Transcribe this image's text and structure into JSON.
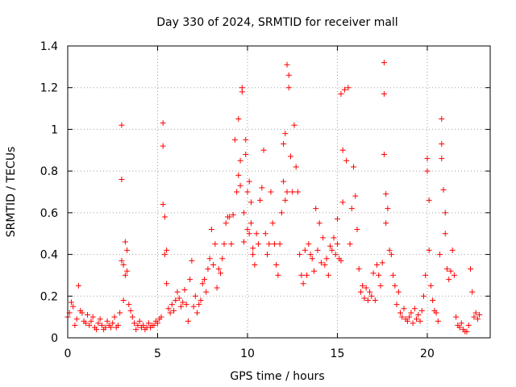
{
  "chart_data": {
    "type": "scatter",
    "title": "Day 330 of 2024, SRMTID for receiver mall",
    "xlabel": "GPS time / hours",
    "ylabel": "SRMTID / TECUs",
    "xlim": [
      0,
      23.5
    ],
    "ylim": [
      0,
      1.4
    ],
    "xticks": [
      0,
      5,
      10,
      15,
      20
    ],
    "xtick_labels": [
      "0",
      "5",
      "10",
      "15",
      "20"
    ],
    "yticks": [
      0,
      0.2,
      0.4,
      0.6,
      0.8,
      1,
      1.2,
      1.4
    ],
    "ytick_labels": [
      "0",
      "0.2",
      "0.4",
      "0.6",
      "0.8",
      "1",
      "1.2",
      "1.4"
    ],
    "grid": true,
    "marker": "plus",
    "series": [
      {
        "name": "SRMTID",
        "color": "#ff0000",
        "x": [
          0.0,
          0.1,
          0.2,
          0.3,
          0.4,
          0.5,
          0.6,
          0.7,
          0.8,
          0.9,
          1.0,
          1.1,
          1.2,
          1.3,
          1.4,
          1.5,
          1.6,
          1.7,
          1.8,
          1.9,
          2.0,
          2.1,
          2.2,
          2.3,
          2.4,
          2.5,
          2.6,
          2.7,
          2.8,
          2.9,
          3.0,
          3.0,
          3.0,
          3.1,
          3.1,
          3.2,
          3.2,
          3.3,
          3.3,
          3.4,
          3.5,
          3.6,
          3.7,
          3.8,
          3.9,
          4.0,
          4.1,
          4.2,
          4.3,
          4.4,
          4.5,
          4.6,
          4.7,
          4.8,
          4.9,
          5.0,
          5.1,
          5.2,
          5.3,
          5.3,
          5.3,
          5.4,
          5.4,
          5.5,
          5.5,
          5.6,
          5.7,
          5.8,
          5.9,
          6.0,
          6.1,
          6.2,
          6.3,
          6.4,
          6.5,
          6.6,
          6.7,
          6.8,
          6.9,
          7.0,
          7.1,
          7.2,
          7.3,
          7.4,
          7.5,
          7.6,
          7.7,
          7.8,
          7.9,
          8.0,
          8.1,
          8.2,
          8.3,
          8.4,
          8.5,
          8.6,
          8.7,
          8.8,
          8.9,
          9.0,
          9.1,
          9.2,
          9.3,
          9.4,
          9.5,
          9.5,
          9.6,
          9.6,
          9.7,
          9.7,
          9.8,
          9.8,
          9.9,
          9.9,
          10.0,
          10.0,
          10.1,
          10.1,
          10.2,
          10.2,
          10.3,
          10.3,
          10.4,
          10.5,
          10.6,
          10.7,
          10.8,
          10.9,
          11.0,
          11.1,
          11.2,
          11.3,
          11.4,
          11.5,
          11.6,
          11.7,
          11.8,
          11.9,
          12.0,
          12.0,
          12.1,
          12.1,
          12.2,
          12.2,
          12.3,
          12.3,
          12.4,
          12.5,
          12.6,
          12.7,
          12.8,
          12.9,
          13.0,
          13.1,
          13.2,
          13.3,
          13.4,
          13.5,
          13.6,
          13.7,
          13.8,
          13.9,
          14.0,
          14.1,
          14.2,
          14.3,
          14.4,
          14.5,
          14.6,
          14.7,
          14.8,
          14.9,
          15.0,
          15.0,
          15.1,
          15.2,
          15.2,
          15.3,
          15.3,
          15.4,
          15.5,
          15.6,
          15.7,
          15.8,
          15.9,
          16.0,
          16.1,
          16.2,
          16.3,
          16.4,
          16.5,
          16.6,
          16.7,
          16.8,
          16.9,
          17.0,
          17.1,
          17.2,
          17.3,
          17.4,
          17.5,
          17.6,
          17.6,
          17.6,
          17.7,
          17.7,
          17.8,
          17.9,
          18.0,
          18.1,
          18.2,
          18.3,
          18.4,
          18.5,
          18.6,
          18.7,
          18.8,
          18.9,
          19.0,
          19.1,
          19.2,
          19.3,
          19.4,
          19.5,
          19.6,
          19.7,
          19.8,
          19.9,
          20.0,
          20.0,
          20.1,
          20.1,
          20.2,
          20.3,
          20.4,
          20.5,
          20.6,
          20.7,
          20.8,
          20.8,
          20.8,
          20.9,
          21.0,
          21.0,
          21.1,
          21.2,
          21.3,
          21.4,
          21.5,
          21.6,
          21.7,
          21.8,
          21.9,
          22.0,
          22.1,
          22.2,
          22.3,
          22.4,
          22.5,
          22.6,
          22.7,
          22.8,
          22.9
        ],
        "y": [
          0.1,
          0.12,
          0.17,
          0.15,
          0.06,
          0.09,
          0.25,
          0.13,
          0.12,
          0.08,
          0.07,
          0.11,
          0.06,
          0.08,
          0.1,
          0.05,
          0.04,
          0.07,
          0.09,
          0.06,
          0.04,
          0.05,
          0.08,
          0.06,
          0.05,
          0.07,
          0.1,
          0.05,
          0.06,
          0.12,
          1.02,
          0.76,
          0.37,
          0.35,
          0.18,
          0.46,
          0.3,
          0.42,
          0.32,
          0.16,
          0.13,
          0.1,
          0.07,
          0.04,
          0.06,
          0.08,
          0.05,
          0.06,
          0.04,
          0.05,
          0.07,
          0.05,
          0.06,
          0.06,
          0.08,
          0.07,
          0.09,
          0.1,
          1.03,
          0.92,
          0.64,
          0.58,
          0.4,
          0.42,
          0.26,
          0.14,
          0.12,
          0.16,
          0.13,
          0.18,
          0.22,
          0.19,
          0.15,
          0.17,
          0.23,
          0.16,
          0.08,
          0.28,
          0.37,
          0.15,
          0.2,
          0.12,
          0.16,
          0.18,
          0.26,
          0.28,
          0.22,
          0.33,
          0.38,
          0.52,
          0.35,
          0.45,
          0.24,
          0.33,
          0.31,
          0.38,
          0.45,
          0.55,
          0.58,
          0.58,
          0.45,
          0.59,
          0.95,
          0.7,
          1.05,
          0.78,
          0.73,
          0.85,
          1.18,
          1.2,
          0.6,
          0.46,
          0.95,
          0.88,
          0.7,
          0.52,
          0.75,
          0.5,
          0.65,
          0.55,
          0.43,
          0.4,
          0.35,
          0.5,
          0.45,
          0.66,
          0.72,
          0.9,
          0.5,
          0.4,
          0.45,
          0.7,
          0.55,
          0.45,
          0.35,
          0.3,
          0.45,
          0.6,
          0.75,
          0.93,
          0.66,
          0.98,
          0.7,
          1.31,
          1.26,
          1.2,
          0.87,
          0.7,
          1.02,
          0.82,
          0.7,
          0.4,
          0.3,
          0.26,
          0.42,
          0.3,
          0.45,
          0.4,
          0.38,
          0.32,
          0.62,
          0.42,
          0.55,
          0.36,
          0.48,
          0.35,
          0.38,
          0.3,
          0.44,
          0.42,
          0.48,
          0.4,
          0.57,
          0.45,
          0.38,
          0.37,
          1.17,
          0.9,
          0.65,
          1.19,
          0.85,
          1.2,
          0.45,
          0.62,
          0.82,
          0.68,
          0.52,
          0.33,
          0.22,
          0.25,
          0.19,
          0.24,
          0.18,
          0.22,
          0.2,
          0.31,
          0.18,
          0.35,
          0.3,
          0.25,
          0.36,
          1.32,
          1.17,
          0.88,
          0.69,
          0.55,
          0.62,
          0.42,
          0.4,
          0.3,
          0.25,
          0.16,
          0.22,
          0.12,
          0.1,
          0.14,
          0.09,
          0.08,
          0.1,
          0.12,
          0.07,
          0.14,
          0.09,
          0.11,
          0.08,
          0.13,
          0.2,
          0.3,
          0.86,
          0.8,
          0.66,
          0.42,
          0.25,
          0.18,
          0.13,
          0.12,
          0.08,
          0.4,
          1.05,
          0.93,
          0.86,
          0.71,
          0.6,
          0.5,
          0.33,
          0.28,
          0.32,
          0.42,
          0.3,
          0.1,
          0.06,
          0.05,
          0.07,
          0.04,
          0.03,
          0.03,
          0.06,
          0.33,
          0.22,
          0.1,
          0.12,
          0.09,
          0.11
        ]
      }
    ]
  }
}
